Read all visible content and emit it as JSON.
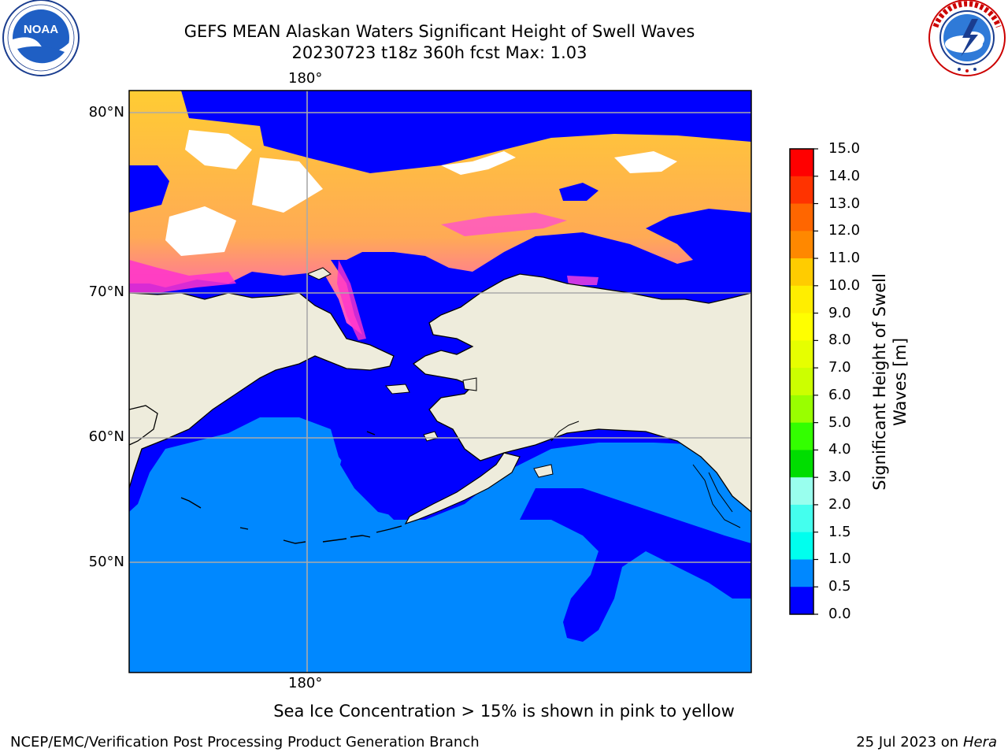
{
  "header": {
    "title_line1": "GEFS MEAN Alaskan Waters Significant Height of Swell Waves",
    "title_line2": "20230723 t18z 360h fcst   Max: 1.03"
  },
  "logos": {
    "left": {
      "name": "NOAA",
      "ring_text": "NATIONAL OCEANIC AND ATMOSPHERIC ADMINISTRATION · U.S. DEPARTMENT OF COMMERCE"
    },
    "right": {
      "name": "NATIONAL WEATHER SERVICE"
    }
  },
  "map": {
    "lon_label_top": "180°",
    "lon_label_bottom": "180°",
    "lat_labels": [
      "80°N",
      "70°N",
      "60°N",
      "50°N"
    ]
  },
  "colorbar": {
    "label_line1": "Significant Height of Swell",
    "label_line2": "Waves [m]",
    "ticks": [
      "15.0",
      "14.0",
      "13.0",
      "12.0",
      "11.0",
      "10.0",
      "9.0",
      "8.0",
      "7.0",
      "6.0",
      "5.0",
      "4.0",
      "3.0",
      "2.0",
      "1.5",
      "1.0",
      "0.5",
      "0.0"
    ],
    "colors": [
      "#ff0000",
      "#ff3300",
      "#ff6600",
      "#ff8800",
      "#ffaa00",
      "#ffcc00",
      "#ffee00",
      "#ffff00",
      "#e6ff00",
      "#ccff00",
      "#99ff00",
      "#33ff00",
      "#00dd00",
      "#44ee77",
      "#99ffee",
      "#44ffee",
      "#00ffee",
      "#0088ff",
      "#0000ff"
    ]
  },
  "caption": "Sea Ice Concentration > 15% is shown in pink to yellow",
  "footer": {
    "left": "NCEP/EMC/Verification Post Processing Product Generation Branch",
    "right_date": "25 Jul 2023 on ",
    "right_host": "Hera"
  }
}
